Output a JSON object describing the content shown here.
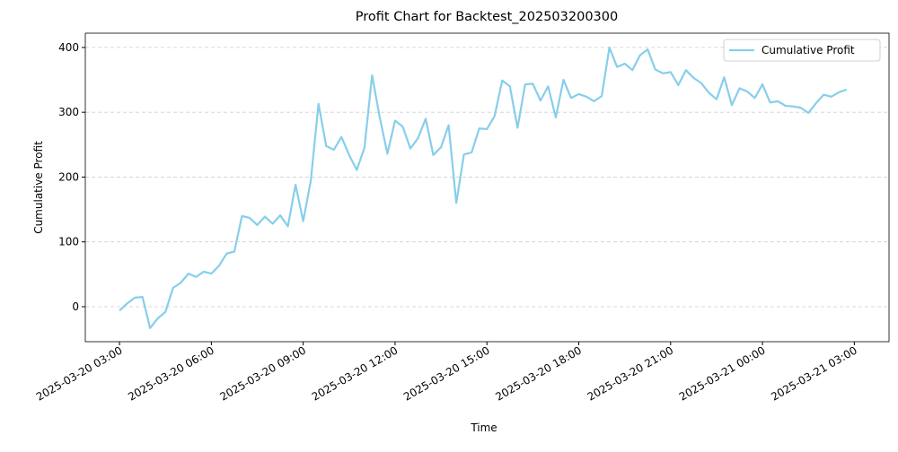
{
  "chart_data": {
    "type": "line",
    "title": "Profit Chart for Backtest_202503200300",
    "x_label": "Time",
    "y_label": "Cumulative Profit",
    "x": [
      "2025-03-20 03:00",
      "2025-03-20 03:15",
      "2025-03-20 03:30",
      "2025-03-20 03:45",
      "2025-03-20 04:00",
      "2025-03-20 04:15",
      "2025-03-20 04:30",
      "2025-03-20 04:45",
      "2025-03-20 05:00",
      "2025-03-20 05:15",
      "2025-03-20 05:30",
      "2025-03-20 05:45",
      "2025-03-20 06:00",
      "2025-03-20 06:15",
      "2025-03-20 06:30",
      "2025-03-20 06:45",
      "2025-03-20 07:00",
      "2025-03-20 07:15",
      "2025-03-20 07:30",
      "2025-03-20 07:45",
      "2025-03-20 08:00",
      "2025-03-20 08:15",
      "2025-03-20 08:30",
      "2025-03-20 08:45",
      "2025-03-20 09:00",
      "2025-03-20 09:15",
      "2025-03-20 09:30",
      "2025-03-20 09:45",
      "2025-03-20 10:00",
      "2025-03-20 10:15",
      "2025-03-20 10:30",
      "2025-03-20 10:45",
      "2025-03-20 11:00",
      "2025-03-20 11:15",
      "2025-03-20 11:30",
      "2025-03-20 11:45",
      "2025-03-20 12:00",
      "2025-03-20 12:15",
      "2025-03-20 12:30",
      "2025-03-20 12:45",
      "2025-03-20 13:00",
      "2025-03-20 13:15",
      "2025-03-20 13:30",
      "2025-03-20 13:45",
      "2025-03-20 14:00",
      "2025-03-20 14:15",
      "2025-03-20 14:30",
      "2025-03-20 14:45",
      "2025-03-20 15:00",
      "2025-03-20 15:15",
      "2025-03-20 15:30",
      "2025-03-20 15:45",
      "2025-03-20 16:00",
      "2025-03-20 16:15",
      "2025-03-20 16:30",
      "2025-03-20 16:45",
      "2025-03-20 17:00",
      "2025-03-20 17:15",
      "2025-03-20 17:30",
      "2025-03-20 17:45",
      "2025-03-20 18:00",
      "2025-03-20 18:15",
      "2025-03-20 18:30",
      "2025-03-20 18:45",
      "2025-03-20 19:00",
      "2025-03-20 19:15",
      "2025-03-20 19:30",
      "2025-03-20 19:45",
      "2025-03-20 20:00",
      "2025-03-20 20:15",
      "2025-03-20 20:30",
      "2025-03-20 20:45",
      "2025-03-20 21:00",
      "2025-03-20 21:15",
      "2025-03-20 21:30",
      "2025-03-20 21:45",
      "2025-03-20 22:00",
      "2025-03-20 22:15",
      "2025-03-20 22:30",
      "2025-03-20 22:45",
      "2025-03-20 23:00",
      "2025-03-20 23:15",
      "2025-03-20 23:30",
      "2025-03-20 23:45",
      "2025-03-21 00:00",
      "2025-03-21 00:15",
      "2025-03-21 00:30",
      "2025-03-21 00:45",
      "2025-03-21 01:00",
      "2025-03-21 01:15",
      "2025-03-21 01:30",
      "2025-03-21 01:45",
      "2025-03-21 02:00",
      "2025-03-21 02:15",
      "2025-03-21 02:30",
      "2025-03-21 02:45"
    ],
    "series": [
      {
        "name": "Cumulative Profit",
        "color": "#87ceeb",
        "values": [
          -6,
          5,
          14,
          15,
          -33,
          -18,
          -8,
          29,
          37,
          51,
          46,
          54,
          51,
          63,
          82,
          85,
          140,
          137,
          126,
          139,
          128,
          141,
          124,
          188,
          132,
          195,
          313,
          248,
          242,
          262,
          234,
          211,
          245,
          357,
          292,
          236,
          287,
          278,
          244,
          260,
          290,
          234,
          246,
          280,
          160,
          235,
          238,
          275,
          274,
          294,
          349,
          340,
          276,
          343,
          344,
          318,
          340,
          292,
          350,
          322,
          328,
          324,
          317,
          325,
          400,
          370,
          375,
          365,
          388,
          397,
          366,
          360,
          362,
          342,
          365,
          353,
          345,
          330,
          320,
          354,
          311,
          337,
          332,
          322,
          343,
          315,
          317,
          310,
          309,
          307,
          299,
          314,
          327,
          324,
          331,
          335
        ]
      }
    ],
    "xlim": [
      "2025-03-20 01:53",
      "2025-03-21 04:08"
    ],
    "xticks": [
      "2025-03-20 03:00",
      "2025-03-20 06:00",
      "2025-03-20 09:00",
      "2025-03-20 12:00",
      "2025-03-20 15:00",
      "2025-03-20 18:00",
      "2025-03-20 21:00",
      "2025-03-21 00:00",
      "2025-03-21 03:00"
    ],
    "ylim": [
      -54,
      422
    ],
    "yticks": [
      0,
      100,
      200,
      300,
      400
    ],
    "grid": true,
    "legend": "upper right"
  }
}
